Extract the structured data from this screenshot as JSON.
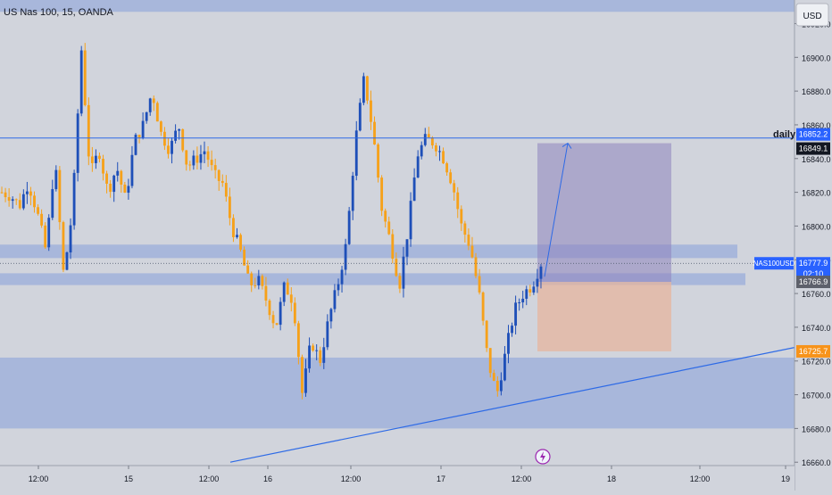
{
  "symbol_title": "US Nas 100, 15, OANDA",
  "currency_button": "USD",
  "daily_label": "daily",
  "colors": {
    "background": "#d1d4dc",
    "zone": "#6f8fd8",
    "up_candle": "#1e4fb8",
    "down_candle": "#f6a11a",
    "trend_line": "#2d6ae6",
    "target_box": "#8e83bd",
    "stop_box": "#e8b49a",
    "text": "#131722"
  },
  "chart_data": {
    "type": "candlestick",
    "y_axis_ticks": [
      "16920.0",
      "16900.0",
      "16880.0",
      "16860.0",
      "16840.0",
      "16820.0",
      "16800.0",
      "16780.0",
      "16760.0",
      "16740.0",
      "16720.0",
      "16700.0",
      "16680.0",
      "16660.0"
    ],
    "y_tick_values": [
      16920,
      16900,
      16880,
      16860,
      16840,
      16820,
      16800,
      16780,
      16760,
      16740,
      16720,
      16700,
      16680,
      16660
    ],
    "ylim": [
      16658,
      16934
    ],
    "x_axis_labels": [
      "12:00",
      "15",
      "12:00",
      "16",
      "12:00",
      "17",
      "12:00",
      "18",
      "12:00",
      "19"
    ],
    "price_labels": [
      {
        "text": "16852.2",
        "value": 16852.2,
        "style": "blue"
      },
      {
        "text": "16849.1",
        "value": 16849.1,
        "style": "dark"
      },
      {
        "text": "NAS100USD",
        "value": 16777.9,
        "style": "blue-tag"
      },
      {
        "text": "16777.9",
        "value": 16777.9,
        "style": "blue"
      },
      {
        "text": "02:10",
        "value": 16773.5,
        "style": "blue"
      },
      {
        "text": "16766.9",
        "value": 16766.9,
        "style": "gray"
      },
      {
        "text": "16725.7",
        "value": 16725.7,
        "style": "orange"
      }
    ],
    "horizontal_lines": [
      {
        "name": "daily",
        "value": 16852.2
      }
    ],
    "zones": [
      {
        "low": 16927,
        "high": 16934
      },
      {
        "low": 16781,
        "high": 16789
      },
      {
        "low": 16765,
        "high": 16772
      },
      {
        "low": 16680,
        "high": 16722
      }
    ],
    "trend_line": {
      "from": {
        "x": "before 16 00:00",
        "value": 16660
      },
      "to": {
        "x": "after 19 00:00",
        "value": 16728
      }
    },
    "position": {
      "entry": 16766.9,
      "target": 16849.1,
      "stop": 16725.7
    },
    "close_points": [
      16820,
      16818,
      16812,
      16826,
      16808,
      16785,
      16840,
      16770,
      16810,
      16905,
      16830,
      16845,
      16820,
      16835,
      16815,
      16850,
      16860,
      16880,
      16855,
      16845,
      16860,
      16835,
      16840,
      16845,
      16830,
      16825,
      16800,
      16785,
      16765,
      16768,
      16755,
      16740,
      16765,
      16755,
      16700,
      16732,
      16720,
      16745,
      16765,
      16790,
      16850,
      16888,
      16855,
      16810,
      16790,
      16765,
      16800,
      16842,
      16852,
      16849,
      16840,
      16825,
      16800,
      16788,
      16760,
      16720,
      16700,
      16725,
      16750,
      16760,
      16765,
      16778
    ]
  }
}
